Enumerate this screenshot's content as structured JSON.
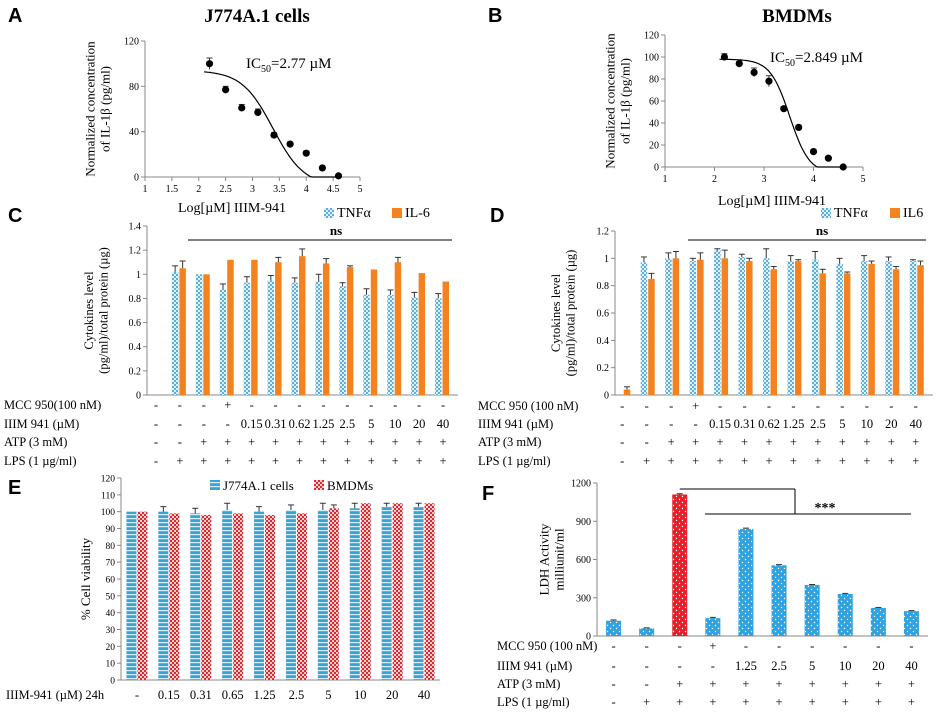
{
  "panel_labels": [
    "A",
    "B",
    "C",
    "D",
    "E",
    "F"
  ],
  "colors": {
    "tnf": "#5bb0de",
    "il6": "#f4821f",
    "j774": "#3aa2d4",
    "bmdm": "#e0282e",
    "ldh_blue": "#2fa3df",
    "ldh_red": "#e0202a"
  },
  "chart_data": [
    {
      "id": "A",
      "type": "scatter",
      "title": "J774A.1 cells",
      "xlabel": "Log[µM]  IIIM-941",
      "ylabel": [
        "Normalized  concentration",
        "of IL-1β  (pg/ml)"
      ],
      "xlim": [
        1,
        5
      ],
      "ylim": [
        0,
        120
      ],
      "xticks": [
        "1",
        "1.5",
        "2",
        "2.5",
        "3",
        "3.5",
        "4",
        "4.5",
        "5"
      ],
      "yticks": [
        "0",
        "40",
        "80",
        "120"
      ],
      "annotation": {
        "main": "IC",
        "sub": "50",
        "rest": "=2.77 µM"
      },
      "points": [
        {
          "x": 2.2,
          "y": 100,
          "err": 5
        },
        {
          "x": 2.5,
          "y": 77,
          "err": 3
        },
        {
          "x": 2.8,
          "y": 61,
          "err": 3
        },
        {
          "x": 3.1,
          "y": 57,
          "err": 3
        },
        {
          "x": 3.4,
          "y": 37,
          "err": 2
        },
        {
          "x": 3.7,
          "y": 29,
          "err": 2
        },
        {
          "x": 4.0,
          "y": 21,
          "err": 2
        },
        {
          "x": 4.3,
          "y": 8,
          "err": 1
        },
        {
          "x": 4.6,
          "y": 1,
          "err": 1
        }
      ],
      "fit": {
        "top": 94,
        "bottom": -8,
        "logIC50": 3.38,
        "hill": 1.5
      }
    },
    {
      "id": "B",
      "type": "scatter",
      "title": "BMDMs",
      "xlabel": "Log[µM]   IIIM-941",
      "ylabel": [
        "Normalized  concentration",
        "of IL-1β  (pg/ml)"
      ],
      "xlim": [
        1,
        5
      ],
      "ylim": [
        0,
        120
      ],
      "xticks": [
        "1",
        "2",
        "3",
        "4",
        "5"
      ],
      "yticks": [
        "0",
        "20",
        "40",
        "60",
        "80",
        "100",
        "120"
      ],
      "annotation": {
        "main": "IC",
        "sub": "50",
        "rest": "=2.849 µM"
      },
      "points": [
        {
          "x": 2.2,
          "y": 100,
          "err": 3
        },
        {
          "x": 2.5,
          "y": 94,
          "err": 2
        },
        {
          "x": 2.8,
          "y": 86,
          "err": 4
        },
        {
          "x": 3.1,
          "y": 78,
          "err": 5
        },
        {
          "x": 3.4,
          "y": 53,
          "err": 2
        },
        {
          "x": 3.7,
          "y": 36,
          "err": 2
        },
        {
          "x": 4.0,
          "y": 14,
          "err": 2
        },
        {
          "x": 4.3,
          "y": 8,
          "err": 1
        },
        {
          "x": 4.6,
          "y": 0,
          "err": 1
        }
      ],
      "fit": {
        "top": 98,
        "bottom": -6,
        "logIC50": 3.52,
        "hill": 2.2
      }
    },
    {
      "id": "C",
      "type": "bar",
      "ylabel": [
        "Cytokines  level",
        "(pg/ml)/total  protein  (µg)"
      ],
      "ylim": [
        0,
        1.4
      ],
      "yticks": [
        "0",
        "0.2",
        "0.4",
        "0.6",
        "0.8",
        "1",
        "1.2",
        "1.4"
      ],
      "legend": [
        "TNFα",
        "IL-6"
      ],
      "annotation": "ns",
      "series": [
        {
          "name": "TNFα",
          "values": [
            null,
            1.02,
            1.0,
            0.87,
            0.93,
            0.95,
            0.93,
            0.94,
            0.9,
            0.83,
            0.83,
            0.81,
            0.8
          ],
          "errors": [
            0,
            0.05,
            0,
            0.05,
            0.05,
            0.04,
            0.04,
            0.06,
            0.03,
            0.05,
            0.04,
            0.04,
            0.04
          ]
        },
        {
          "name": "IL-6",
          "values": [
            null,
            1.05,
            1.0,
            1.12,
            1.12,
            1.1,
            1.15,
            1.09,
            1.06,
            1.04,
            1.1,
            1.01,
            0.94
          ],
          "errors": [
            0,
            0.06,
            0,
            0,
            0,
            0.04,
            0.06,
            0.04,
            0.01,
            0,
            0.04,
            0,
            0
          ]
        }
      ],
      "table": [
        {
          "label": "MCC 950(100 nM)",
          "cells": [
            "-",
            "-",
            "-",
            "+",
            "-",
            "-",
            "-",
            "-",
            "-",
            "-",
            "-",
            "-",
            "-"
          ]
        },
        {
          "label": "IIIM 941 (µM)",
          "cells": [
            "-",
            "-",
            "-",
            "-",
            "0.15",
            "0.31",
            "0.62",
            "1.25",
            "2.5",
            "5",
            "10",
            "20",
            "40"
          ]
        },
        {
          "label": "ATP (3 mM)",
          "cells": [
            "-",
            "-",
            "+",
            "+",
            "+",
            "+",
            "+",
            "+",
            "+",
            "+",
            "+",
            "+",
            "+"
          ]
        },
        {
          "label": "LPS (1 µg/ml)",
          "cells": [
            "-",
            "+",
            "+",
            "+",
            "+",
            "+",
            "+",
            "+",
            "+",
            "+",
            "+",
            "+",
            "+"
          ]
        }
      ]
    },
    {
      "id": "D",
      "type": "bar",
      "ylabel": [
        "Cytokines  level",
        "(pg/ml)/total  protein  (µg)"
      ],
      "ylim": [
        0,
        1.2
      ],
      "yticks": [
        "0",
        "0.2",
        "0.4",
        "0.6",
        "0.8",
        "1",
        "1.2"
      ],
      "legend": [
        "TNFα",
        "IL6"
      ],
      "annotation": "ns",
      "series": [
        {
          "name": "TNFα",
          "values": [
            0.0,
            0.97,
            1.0,
            0.98,
            1.06,
            1.01,
            1.0,
            0.98,
            0.99,
            0.96,
            0.98,
            0.98,
            0.98
          ],
          "errors": [
            0,
            0.04,
            0.04,
            0.02,
            0.01,
            0.02,
            0.07,
            0.04,
            0.06,
            0.04,
            0.04,
            0.03,
            0.01
          ]
        },
        {
          "name": "IL6",
          "values": [
            0.04,
            0.85,
            1.0,
            0.99,
            1.0,
            0.98,
            0.92,
            0.98,
            0.89,
            0.89,
            0.96,
            0.92,
            0.95
          ],
          "errors": [
            0.02,
            0.04,
            0.05,
            0.05,
            0.06,
            0.02,
            0.02,
            0.01,
            0.03,
            0.01,
            0.02,
            0.02,
            0.03
          ]
        }
      ],
      "table": [
        {
          "label": "MCC 950 (100 nM)",
          "cells": [
            "-",
            "-",
            "-",
            "+",
            "-",
            "-",
            "-",
            "-",
            "-",
            "-",
            "-",
            "-",
            "-"
          ]
        },
        {
          "label": "IIIM 941 (µM)",
          "cells": [
            "-",
            "-",
            "-",
            "-",
            "0.15",
            "0.31",
            "0.62",
            "1.25",
            "2.5",
            "5",
            "10",
            "20",
            "40"
          ]
        },
        {
          "label": "ATP (3 mM)",
          "cells": [
            "-",
            "-",
            "+",
            "+",
            "+",
            "+",
            "+",
            "+",
            "+",
            "+",
            "+",
            "+",
            "+"
          ]
        },
        {
          "label": "LPS (1 µg/ml)",
          "cells": [
            "-",
            "+",
            "+",
            "+",
            "+",
            "+",
            "+",
            "+",
            "+",
            "+",
            "+",
            "+",
            "+"
          ]
        }
      ]
    },
    {
      "id": "E",
      "type": "bar",
      "ylabel": [
        "% Cell viability"
      ],
      "ylim": [
        0,
        120
      ],
      "yticks": [
        "0",
        "10",
        "20",
        "30",
        "40",
        "50",
        "60",
        "70",
        "80",
        "90",
        "100",
        "110",
        "120"
      ],
      "legend": [
        "J774A.1 cells",
        "BMDMs"
      ],
      "categories": [
        "-",
        "0.15",
        "0.31",
        "0.65",
        "1.25",
        "2.5",
        "5",
        "10",
        "20",
        "40"
      ],
      "xrow_label": "IIIM-941 (µM) 24h",
      "series": [
        {
          "name": "J774A.1 cells",
          "values": [
            100,
            100,
            99,
            101,
            100,
            101,
            101,
            102,
            103,
            103
          ],
          "errors": [
            0,
            3,
            3,
            4,
            3,
            3,
            4,
            3,
            2,
            2
          ]
        },
        {
          "name": "BMDMs",
          "values": [
            100,
            99,
            98,
            99,
            98,
            99,
            102,
            105,
            105,
            105
          ],
          "errors": [
            0,
            0,
            0,
            0,
            0,
            0,
            2,
            0,
            0,
            0
          ]
        }
      ]
    },
    {
      "id": "F",
      "type": "bar",
      "ylabel": [
        "LDH  Activity",
        "milliunit/ml"
      ],
      "ylim": [
        0,
        1200
      ],
      "yticks": [
        "0",
        "300",
        "600",
        "900",
        "1200"
      ],
      "annotation": "***",
      "values": [
        120,
        60,
        1110,
        140,
        840,
        555,
        400,
        330,
        220,
        195
      ],
      "errors": [
        6,
        4,
        6,
        6,
        6,
        5,
        4,
        4,
        4,
        4
      ],
      "highlight_index": 2,
      "table": [
        {
          "label": "MCC 950 (100 nM)",
          "cells": [
            "-",
            "-",
            "-",
            "+",
            "-",
            "-",
            "-",
            "-",
            "-",
            "-"
          ]
        },
        {
          "label": "IIIM 941 (µM)",
          "cells": [
            "-",
            "-",
            "-",
            "-",
            "1.25",
            "2.5",
            "5",
            "10",
            "20",
            "40"
          ]
        },
        {
          "label": "ATP (3 mM)",
          "cells": [
            "-",
            "-",
            "+",
            "+",
            "+",
            "+",
            "+",
            "+",
            "+",
            "+"
          ]
        },
        {
          "label": "LPS (1 µg/ml)",
          "cells": [
            "-",
            "+",
            "+",
            "+",
            "+",
            "+",
            "+",
            "+",
            "+",
            "+"
          ]
        }
      ]
    }
  ]
}
